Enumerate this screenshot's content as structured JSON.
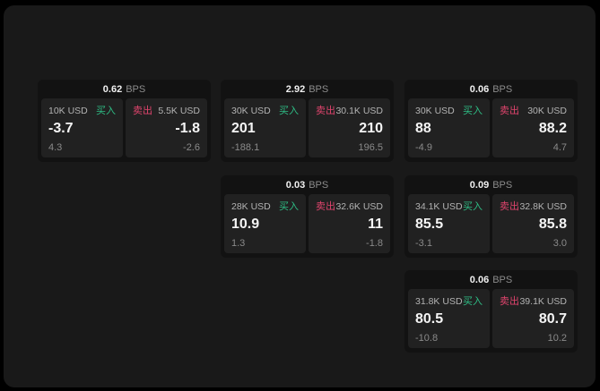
{
  "labels": {
    "bps": "BPS",
    "buy": "买入",
    "sell": "卖出"
  },
  "colors": {
    "page_bg": "#000000",
    "panel_bg": "#191919",
    "card_bg": "#121212",
    "tile_bg": "#212121",
    "buy_green": "#2ebd85",
    "sell_red": "#e0446d",
    "text_primary": "#f5f5f5",
    "text_secondary": "#b3b3b3",
    "text_muted": "#8a8a8a"
  },
  "cards": [
    {
      "bps": "0.62",
      "buy": {
        "amount": "10K USD",
        "value": "-3.7",
        "sub": "4.3"
      },
      "sell": {
        "amount": "5.5K USD",
        "value": "-1.8",
        "sub": "-2.6"
      }
    },
    {
      "bps": "2.92",
      "buy": {
        "amount": "30K USD",
        "value": "201",
        "sub": "-188.1"
      },
      "sell": {
        "amount": "30.1K USD",
        "value": "210",
        "sub": "196.5"
      }
    },
    {
      "bps": "0.06",
      "buy": {
        "amount": "30K USD",
        "value": "88",
        "sub": "-4.9"
      },
      "sell": {
        "amount": "30K USD",
        "value": "88.2",
        "sub": "4.7"
      }
    },
    {
      "bps": "0.03",
      "buy": {
        "amount": "28K USD",
        "value": "10.9",
        "sub": "1.3"
      },
      "sell": {
        "amount": "32.6K USD",
        "value": "11",
        "sub": "-1.8"
      }
    },
    {
      "bps": "0.09",
      "buy": {
        "amount": "34.1K USD",
        "value": "85.5",
        "sub": "-3.1"
      },
      "sell": {
        "amount": "32.8K USD",
        "value": "85.8",
        "sub": "3.0"
      }
    },
    {
      "bps": "0.06",
      "buy": {
        "amount": "31.8K USD",
        "value": "80.5",
        "sub": "-10.8"
      },
      "sell": {
        "amount": "39.1K USD",
        "value": "80.7",
        "sub": "10.2"
      }
    }
  ]
}
